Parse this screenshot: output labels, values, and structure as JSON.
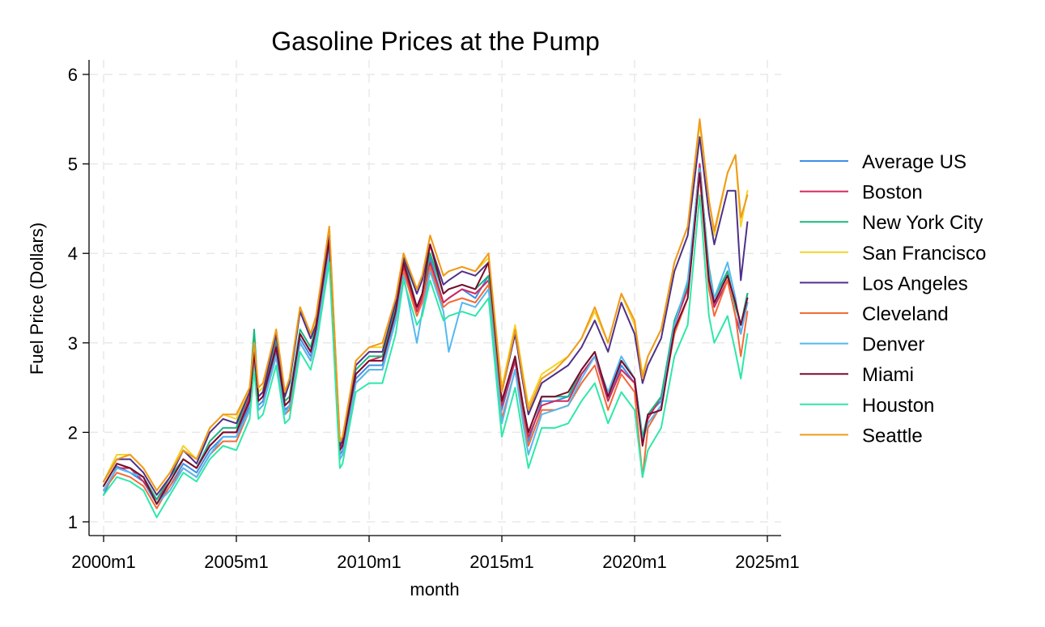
{
  "chart_data": {
    "type": "line",
    "title": "Gasoline Prices at the Pump",
    "xlabel": "month",
    "ylabel": "Fuel Price (Dollars)",
    "xlim": [
      2000.0,
      2025.0
    ],
    "ylim": [
      1,
      6
    ],
    "x_ticks": [
      2000,
      2005,
      2010,
      2015,
      2020,
      2025
    ],
    "x_tick_labels": [
      "2000m1",
      "2005m1",
      "2010m1",
      "2015m1",
      "2020m1",
      "2025m1"
    ],
    "y_ticks": [
      1,
      2,
      3,
      4,
      5,
      6
    ],
    "y_tick_labels": [
      "1",
      "2",
      "3",
      "4",
      "5",
      "6"
    ],
    "grid": true,
    "legend_position": "right",
    "x": [
      2000.0,
      2000.5,
      2001.0,
      2001.5,
      2002.0,
      2002.5,
      2003.0,
      2003.5,
      2004.0,
      2004.5,
      2005.0,
      2005.5,
      2005.67,
      2005.83,
      2006.0,
      2006.5,
      2006.83,
      2007.0,
      2007.4,
      2007.8,
      2008.0,
      2008.5,
      2008.9,
      2009.0,
      2009.5,
      2010.0,
      2010.5,
      2011.0,
      2011.3,
      2011.8,
      2012.0,
      2012.3,
      2012.8,
      2013.0,
      2013.5,
      2014.0,
      2014.5,
      2015.0,
      2015.5,
      2015.8,
      2016.0,
      2016.5,
      2017.0,
      2017.5,
      2018.0,
      2018.5,
      2019.0,
      2019.5,
      2020.0,
      2020.3,
      2020.5,
      2021.0,
      2021.5,
      2022.0,
      2022.45,
      2022.8,
      2023.0,
      2023.5,
      2023.8,
      2024.0,
      2024.25
    ],
    "series": [
      {
        "name": "Average US",
        "color": "#3c8ee6",
        "values": [
          1.3,
          1.62,
          1.55,
          1.45,
          1.2,
          1.4,
          1.65,
          1.55,
          1.8,
          1.95,
          1.95,
          2.3,
          2.9,
          2.3,
          2.35,
          2.9,
          2.25,
          2.3,
          3.05,
          2.85,
          3.1,
          4.1,
          1.75,
          1.8,
          2.6,
          2.75,
          2.75,
          3.3,
          3.9,
          3.35,
          3.5,
          3.95,
          3.45,
          3.5,
          3.6,
          3.5,
          3.75,
          2.25,
          2.8,
          2.25,
          1.9,
          2.35,
          2.35,
          2.4,
          2.65,
          2.85,
          2.35,
          2.75,
          2.55,
          1.9,
          2.2,
          2.35,
          3.2,
          3.6,
          5.0,
          3.7,
          3.4,
          3.8,
          3.4,
          3.2,
          3.55
        ]
      },
      {
        "name": "Boston",
        "color": "#d6275c",
        "values": [
          1.35,
          1.6,
          1.6,
          1.45,
          1.25,
          1.45,
          1.7,
          1.6,
          1.85,
          2.0,
          2.0,
          2.4,
          2.95,
          2.35,
          2.4,
          3.0,
          2.3,
          2.35,
          3.1,
          2.9,
          3.15,
          4.15,
          1.85,
          1.85,
          2.65,
          2.8,
          2.85,
          3.35,
          3.85,
          3.35,
          3.5,
          3.9,
          3.45,
          3.5,
          3.6,
          3.55,
          3.7,
          2.3,
          2.8,
          2.25,
          1.95,
          2.3,
          2.35,
          2.35,
          2.65,
          2.85,
          2.35,
          2.7,
          2.55,
          1.9,
          2.15,
          2.4,
          3.2,
          3.6,
          5.0,
          3.8,
          3.4,
          3.7,
          3.3,
          3.1,
          3.45
        ]
      },
      {
        "name": "New York City",
        "color": "#19b87e",
        "values": [
          1.4,
          1.65,
          1.6,
          1.5,
          1.25,
          1.5,
          1.7,
          1.6,
          1.9,
          2.05,
          2.05,
          2.45,
          3.15,
          2.4,
          2.45,
          3.05,
          2.35,
          2.4,
          3.15,
          2.95,
          3.2,
          4.2,
          1.9,
          1.9,
          2.7,
          2.85,
          2.85,
          3.4,
          3.95,
          3.4,
          3.55,
          4.0,
          3.55,
          3.6,
          3.65,
          3.6,
          3.75,
          2.35,
          2.85,
          2.3,
          2.0,
          2.4,
          2.4,
          2.4,
          2.7,
          2.9,
          2.4,
          2.8,
          2.6,
          1.95,
          2.2,
          2.4,
          3.25,
          3.65,
          4.95,
          3.85,
          3.5,
          3.8,
          3.4,
          3.2,
          3.55
        ]
      },
      {
        "name": "San Francisco",
        "color": "#f5d327",
        "values": [
          1.45,
          1.75,
          1.75,
          1.6,
          1.35,
          1.55,
          1.85,
          1.7,
          2.05,
          2.2,
          2.15,
          2.5,
          3.0,
          2.45,
          2.5,
          3.15,
          2.45,
          2.6,
          3.4,
          3.1,
          3.25,
          4.3,
          1.9,
          1.95,
          2.8,
          2.95,
          2.95,
          3.5,
          4.0,
          3.6,
          3.75,
          4.2,
          3.75,
          3.8,
          3.85,
          3.8,
          3.95,
          2.5,
          3.2,
          2.65,
          2.3,
          2.65,
          2.75,
          2.85,
          3.05,
          3.35,
          3.0,
          3.55,
          3.2,
          2.65,
          2.85,
          3.15,
          3.9,
          4.3,
          5.45,
          4.6,
          4.2,
          4.9,
          5.1,
          4.3,
          4.7
        ]
      },
      {
        "name": "Los Angeles",
        "color": "#4f3089",
        "values": [
          1.45,
          1.7,
          1.7,
          1.55,
          1.3,
          1.5,
          1.8,
          1.65,
          2.0,
          2.15,
          2.1,
          2.45,
          2.95,
          2.4,
          2.45,
          3.1,
          2.4,
          2.55,
          3.35,
          3.05,
          3.2,
          4.25,
          1.85,
          1.9,
          2.75,
          2.9,
          2.9,
          3.45,
          3.95,
          3.55,
          3.7,
          4.1,
          3.65,
          3.7,
          3.8,
          3.75,
          3.9,
          2.45,
          3.1,
          2.55,
          2.2,
          2.55,
          2.65,
          2.75,
          2.95,
          3.25,
          2.9,
          3.45,
          3.1,
          2.55,
          2.75,
          3.05,
          3.8,
          4.2,
          5.3,
          4.45,
          4.1,
          4.7,
          4.7,
          3.7,
          4.35
        ]
      },
      {
        "name": "Cleveland",
        "color": "#f26b3a",
        "values": [
          1.35,
          1.55,
          1.5,
          1.4,
          1.15,
          1.4,
          1.6,
          1.5,
          1.75,
          1.9,
          1.9,
          2.25,
          2.85,
          2.25,
          2.3,
          2.85,
          2.2,
          2.25,
          3.0,
          2.8,
          3.05,
          4.0,
          1.7,
          1.75,
          2.55,
          2.7,
          2.7,
          3.25,
          3.8,
          3.3,
          3.45,
          3.85,
          3.4,
          3.45,
          3.5,
          3.45,
          3.65,
          2.15,
          2.7,
          2.15,
          1.85,
          2.25,
          2.25,
          2.3,
          2.55,
          2.75,
          2.25,
          2.65,
          2.45,
          1.5,
          2.05,
          2.3,
          3.1,
          3.5,
          4.9,
          3.6,
          3.3,
          3.7,
          3.3,
          2.85,
          3.35
        ]
      },
      {
        "name": "Denver",
        "color": "#55b8f0",
        "values": [
          1.35,
          1.6,
          1.55,
          1.5,
          1.2,
          1.35,
          1.6,
          1.5,
          1.75,
          1.95,
          1.95,
          2.25,
          2.85,
          2.25,
          2.3,
          2.85,
          2.2,
          2.3,
          3.0,
          2.8,
          3.05,
          4.0,
          1.7,
          1.75,
          2.55,
          2.7,
          2.7,
          3.25,
          3.75,
          3.0,
          3.35,
          3.8,
          3.35,
          2.9,
          3.45,
          3.4,
          3.6,
          2.1,
          2.7,
          2.1,
          1.75,
          2.2,
          2.25,
          2.3,
          2.6,
          2.85,
          2.45,
          2.85,
          2.6,
          1.9,
          2.1,
          2.3,
          3.2,
          3.7,
          4.95,
          3.8,
          3.5,
          3.9,
          3.5,
          3.1,
          3.45
        ]
      },
      {
        "name": "Miami",
        "color": "#7d0a2c",
        "values": [
          1.4,
          1.65,
          1.6,
          1.5,
          1.2,
          1.45,
          1.7,
          1.6,
          1.85,
          2.0,
          2.0,
          2.35,
          2.9,
          2.35,
          2.4,
          2.95,
          2.3,
          2.35,
          3.1,
          2.9,
          3.15,
          4.15,
          1.8,
          1.85,
          2.65,
          2.8,
          2.8,
          3.35,
          3.9,
          3.4,
          3.55,
          4.1,
          3.55,
          3.6,
          3.65,
          3.6,
          3.9,
          2.35,
          2.85,
          2.3,
          2.0,
          2.4,
          2.4,
          2.45,
          2.7,
          2.9,
          2.4,
          2.8,
          2.6,
          1.85,
          2.2,
          2.25,
          3.15,
          3.5,
          4.9,
          3.7,
          3.45,
          3.75,
          3.45,
          3.2,
          3.5
        ]
      },
      {
        "name": "Houston",
        "color": "#2ee8a8",
        "values": [
          1.3,
          1.5,
          1.45,
          1.35,
          1.05,
          1.3,
          1.55,
          1.45,
          1.7,
          1.85,
          1.8,
          2.15,
          2.7,
          2.15,
          2.2,
          2.75,
          2.1,
          2.15,
          2.9,
          2.7,
          2.95,
          3.9,
          1.6,
          1.65,
          2.45,
          2.55,
          2.55,
          3.1,
          3.7,
          3.2,
          3.3,
          3.7,
          3.25,
          3.3,
          3.35,
          3.3,
          3.5,
          1.95,
          2.5,
          1.95,
          1.6,
          2.05,
          2.05,
          2.1,
          2.35,
          2.55,
          2.1,
          2.45,
          2.25,
          1.5,
          1.8,
          2.05,
          2.85,
          3.2,
          4.65,
          3.3,
          3.0,
          3.3,
          2.9,
          2.6,
          3.1
        ]
      },
      {
        "name": "Seattle",
        "color": "#f09a1c",
        "values": [
          1.45,
          1.7,
          1.75,
          1.6,
          1.35,
          1.55,
          1.8,
          1.7,
          2.05,
          2.2,
          2.2,
          2.5,
          3.0,
          2.5,
          2.55,
          3.15,
          2.45,
          2.6,
          3.4,
          3.1,
          3.3,
          4.3,
          1.9,
          1.95,
          2.8,
          2.95,
          3.0,
          3.5,
          4.0,
          3.6,
          3.75,
          4.2,
          3.75,
          3.8,
          3.85,
          3.8,
          4.0,
          2.45,
          3.15,
          2.6,
          2.25,
          2.6,
          2.7,
          2.85,
          3.05,
          3.4,
          3.0,
          3.55,
          3.25,
          2.6,
          2.85,
          3.15,
          3.9,
          4.3,
          5.5,
          4.6,
          4.25,
          4.9,
          5.1,
          4.4,
          4.65
        ]
      }
    ]
  }
}
